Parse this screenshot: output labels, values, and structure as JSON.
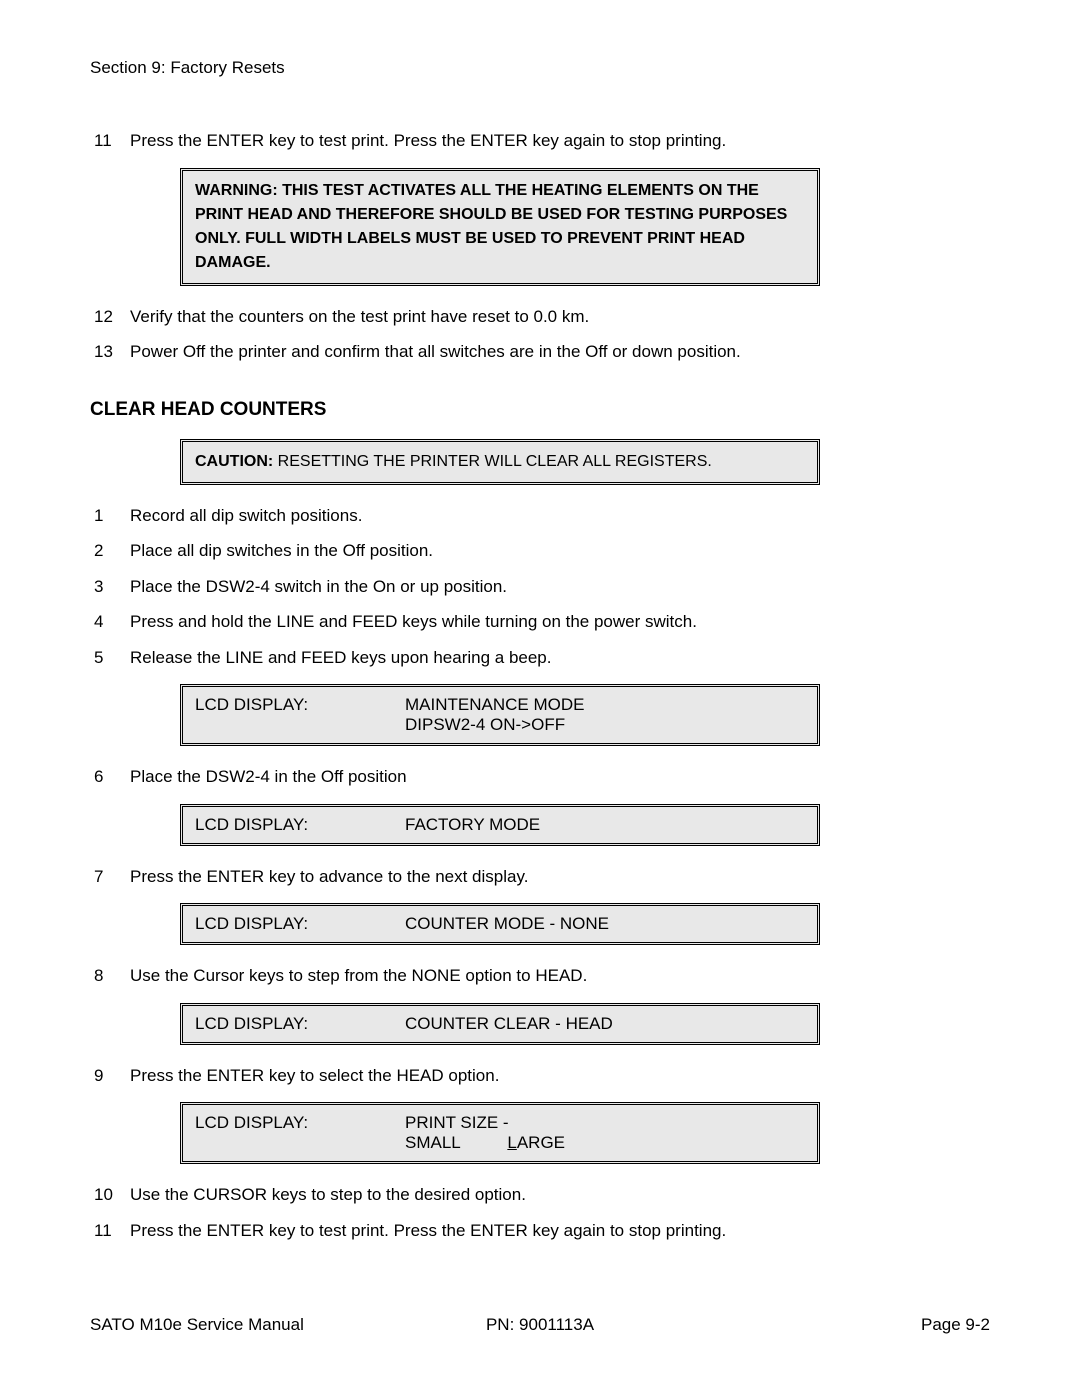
{
  "header": "Section 9: Factory Resets",
  "pre_steps": [
    {
      "num": "11",
      "text": "Press the ENTER key to test print. Press the ENTER key again to stop printing."
    }
  ],
  "warning": {
    "bold": "WARNING: THIS TEST ACTIVATES ALL THE HEATING ELEMENTS ON THE PRINT HEAD AND THEREFORE SHOULD BE USED FOR TESTING PURPOSES ONLY. FULL WIDTH LABELS MUST BE USED TO PREVENT PRINT HEAD DAMAGE."
  },
  "post_warning_steps": [
    {
      "num": "12",
      "text": "Verify that the counters on the test print have reset to 0.0 km."
    },
    {
      "num": "13",
      "text": "Power Off the printer and confirm that all switches are in the Off or down position."
    }
  ],
  "section_title": "CLEAR HEAD COUNTERS",
  "caution": {
    "label": "CAUTION:",
    "text": " RESETTING THE PRINTER WILL CLEAR ALL REGISTERS."
  },
  "main_steps": [
    {
      "num": "1",
      "text": "Record all dip switch positions."
    },
    {
      "num": "2",
      "text": "Place all dip switches in the Off position."
    },
    {
      "num": "3",
      "text": "Place the DSW2-4 switch in the On or up position."
    },
    {
      "num": "4",
      "text": "Press and hold the LINE and FEED keys while turning on the power switch."
    },
    {
      "num": "5",
      "text": "Release the LINE and FEED keys upon hearing a beep."
    }
  ],
  "lcd1": {
    "label": "LCD DISPLAY:",
    "line1": "MAINTENANCE MODE",
    "line2": "DIPSW2-4 ON->OFF"
  },
  "step6": {
    "num": "6",
    "text": "Place the DSW2-4 in the Off position"
  },
  "lcd2": {
    "label": "LCD DISPLAY:",
    "line1": "FACTORY MODE"
  },
  "step7": {
    "num": "7",
    "text": "Press the ENTER key to advance to the next display."
  },
  "lcd3": {
    "label": "LCD DISPLAY:",
    "line1": "COUNTER MODE - NONE"
  },
  "step8": {
    "num": "8",
    "text": "Use the Cursor keys to step from the NONE option to HEAD."
  },
  "lcd4": {
    "label": "LCD DISPLAY:",
    "line1": "COUNTER CLEAR - HEAD"
  },
  "step9": {
    "num": "9",
    "text": "Press  the ENTER key to select the HEAD option."
  },
  "lcd5": {
    "label": "LCD DISPLAY:",
    "line1": "PRINT SIZE -",
    "line2a": "SMALL          ",
    "line2b_ul": "L",
    "line2c": "ARGE"
  },
  "final_steps": [
    {
      "num": "10",
      "text": "Use the CURSOR keys to step to the desired option."
    },
    {
      "num": "11",
      "text": "Press the ENTER key to test print. Press the ENTER key again to stop printing."
    }
  ],
  "footer": {
    "left": "SATO M10e Service Manual",
    "center": "PN:    9001113A",
    "right": "Page 9-2"
  }
}
